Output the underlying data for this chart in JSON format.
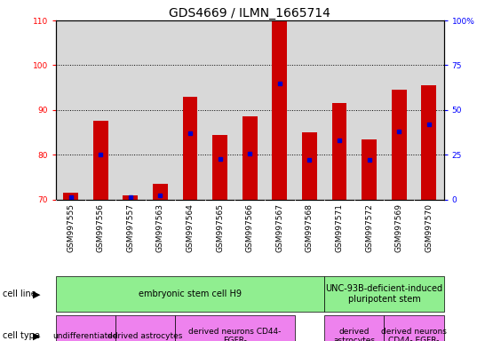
{
  "title": "GDS4669 / ILMN_1665714",
  "samples": [
    "GSM997555",
    "GSM997556",
    "GSM997557",
    "GSM997563",
    "GSM997564",
    "GSM997565",
    "GSM997566",
    "GSM997567",
    "GSM997568",
    "GSM997571",
    "GSM997572",
    "GSM997569",
    "GSM997570"
  ],
  "count_values": [
    71.5,
    87.5,
    71.0,
    73.5,
    93.0,
    84.5,
    88.5,
    110.0,
    85.0,
    91.5,
    83.5,
    94.5,
    95.5
  ],
  "percentile_values": [
    1.5,
    25.0,
    1.5,
    2.5,
    37.0,
    22.5,
    25.5,
    65.0,
    22.0,
    33.0,
    22.0,
    38.0,
    42.0
  ],
  "ylim_left": [
    70,
    110
  ],
  "ylim_right": [
    0,
    100
  ],
  "yticks_left": [
    70,
    80,
    90,
    100,
    110
  ],
  "yticks_right": [
    0,
    25,
    50,
    75,
    100
  ],
  "bar_color": "#cc0000",
  "dot_color": "#0000cc",
  "bar_width": 0.5,
  "plot_bg_color": "#d8d8d8",
  "cell_line_groups": [
    {
      "label": "embryonic stem cell H9",
      "start": 0,
      "end": 8,
      "color": "#90ee90"
    },
    {
      "label": "UNC-93B-deficient-induced\npluripotent stem",
      "start": 9,
      "end": 12,
      "color": "#90ee90"
    }
  ],
  "cell_type_groups": [
    {
      "label": "undifferentiated",
      "start": 0,
      "end": 1,
      "color": "#ee82ee"
    },
    {
      "label": "derived astrocytes",
      "start": 2,
      "end": 3,
      "color": "#ee82ee"
    },
    {
      "label": "derived neurons CD44-\nEGFR-",
      "start": 4,
      "end": 7,
      "color": "#ee82ee"
    },
    {
      "label": "derived\nastrocytes",
      "start": 9,
      "end": 10,
      "color": "#ee82ee"
    },
    {
      "label": "derived neurons\nCD44- EGFR-",
      "start": 11,
      "end": 12,
      "color": "#ee82ee"
    }
  ],
  "legend_count_color": "#cc0000",
  "legend_pct_color": "#0000cc",
  "title_fontsize": 10,
  "tick_fontsize": 6.5,
  "label_fontsize": 7
}
